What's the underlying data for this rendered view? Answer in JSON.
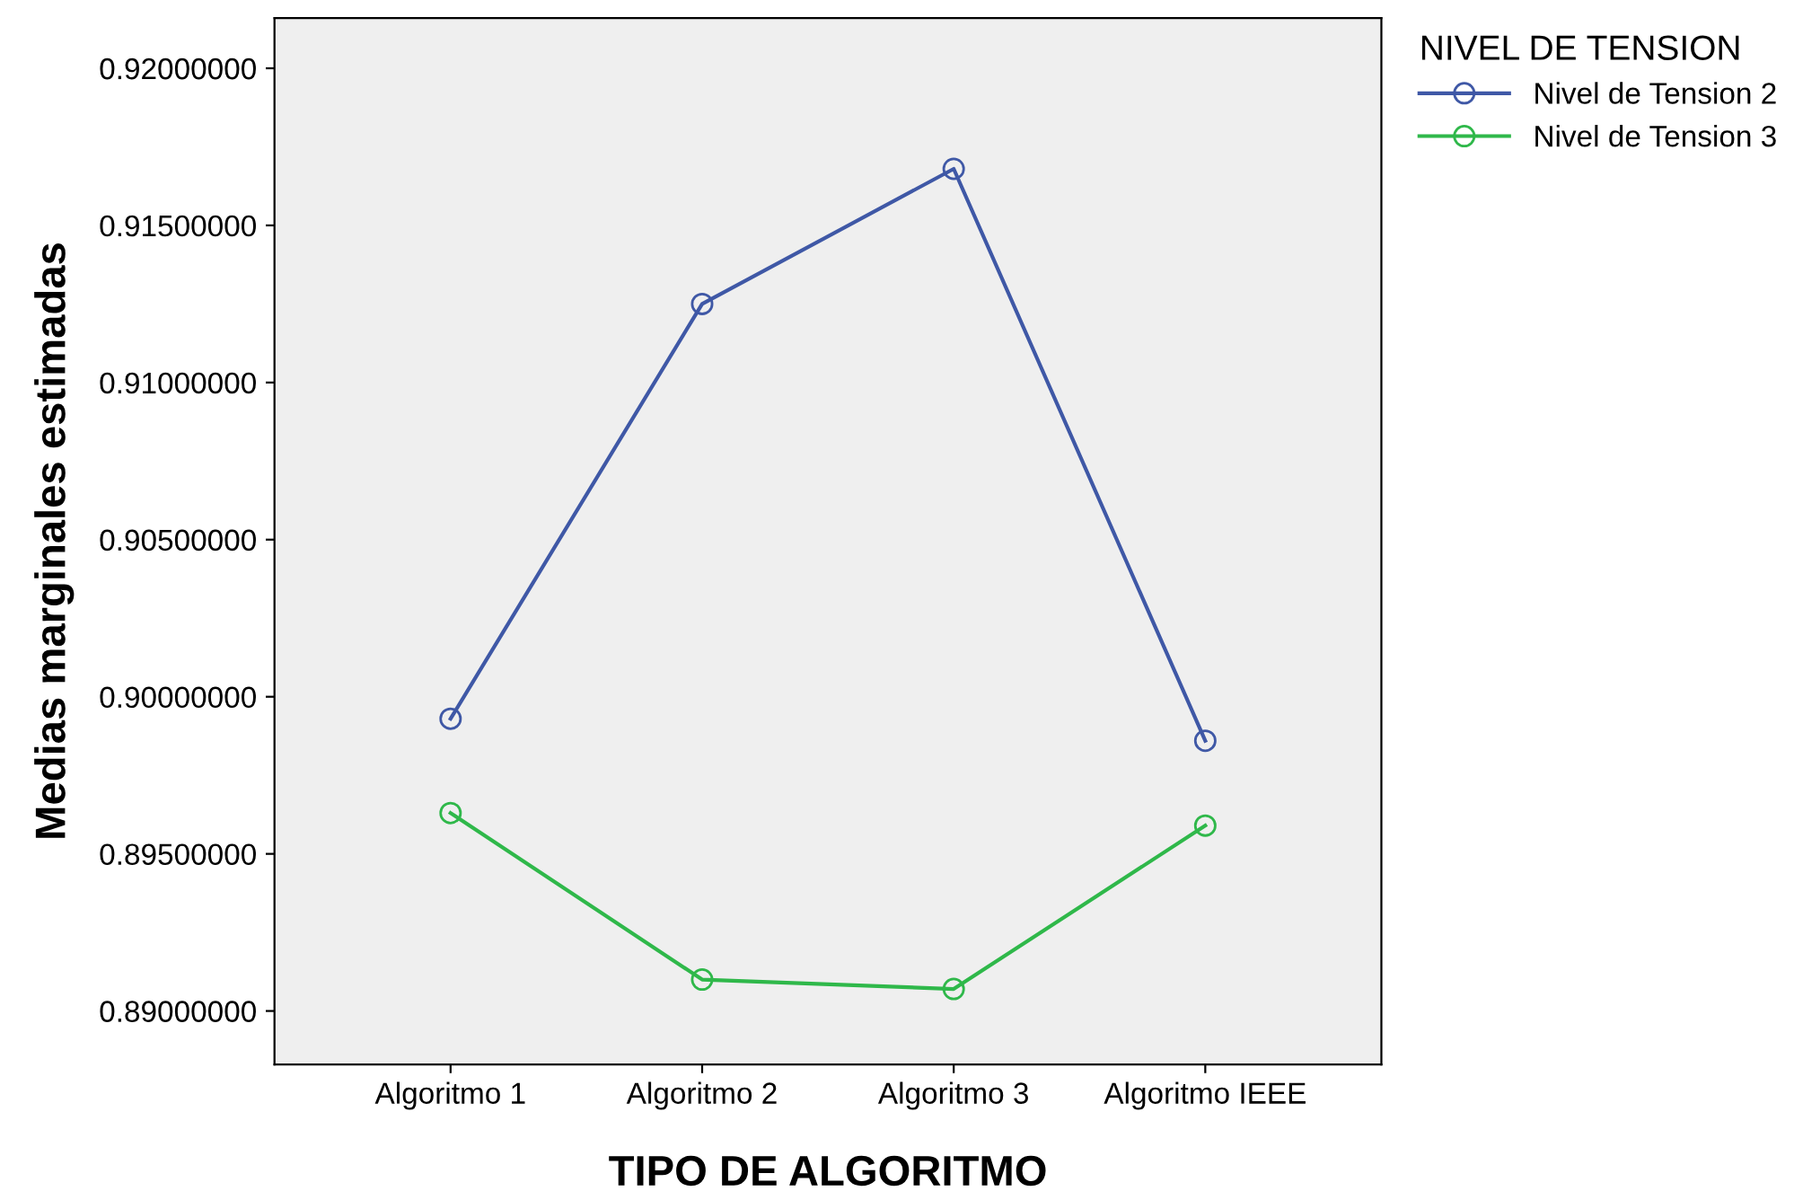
{
  "chart_data": {
    "type": "line",
    "xlabel": "TIPO DE ALGORITMO",
    "ylabel": "Medias marginales estimadas",
    "legend_title": "NIVEL DE TENSION",
    "categories": [
      "Algoritmo 1",
      "Algoritmo 2",
      "Algoritmo 3",
      "Algoritmo IEEE"
    ],
    "series": [
      {
        "name": "Nivel de Tension 2",
        "color": "#3f58a6",
        "values": [
          0.8993,
          0.9125,
          0.9168,
          0.8986
        ]
      },
      {
        "name": "Nivel de Tension 3",
        "color": "#2fb84a",
        "values": [
          0.8963,
          0.891,
          0.8907,
          0.8959
        ]
      }
    ],
    "ylim": [
      0.8883,
      0.9216
    ],
    "yticks": [
      {
        "value": 0.89,
        "label": "0.89000000"
      },
      {
        "value": 0.895,
        "label": "0.89500000"
      },
      {
        "value": 0.9,
        "label": "0.90000000"
      },
      {
        "value": 0.905,
        "label": "0.90500000"
      },
      {
        "value": 0.91,
        "label": "0.91000000"
      },
      {
        "value": 0.915,
        "label": "0.91500000"
      },
      {
        "value": 0.92,
        "label": "0.92000000"
      }
    ],
    "marker": "circle",
    "line_style": "solid",
    "legend": "right",
    "grid": false
  }
}
